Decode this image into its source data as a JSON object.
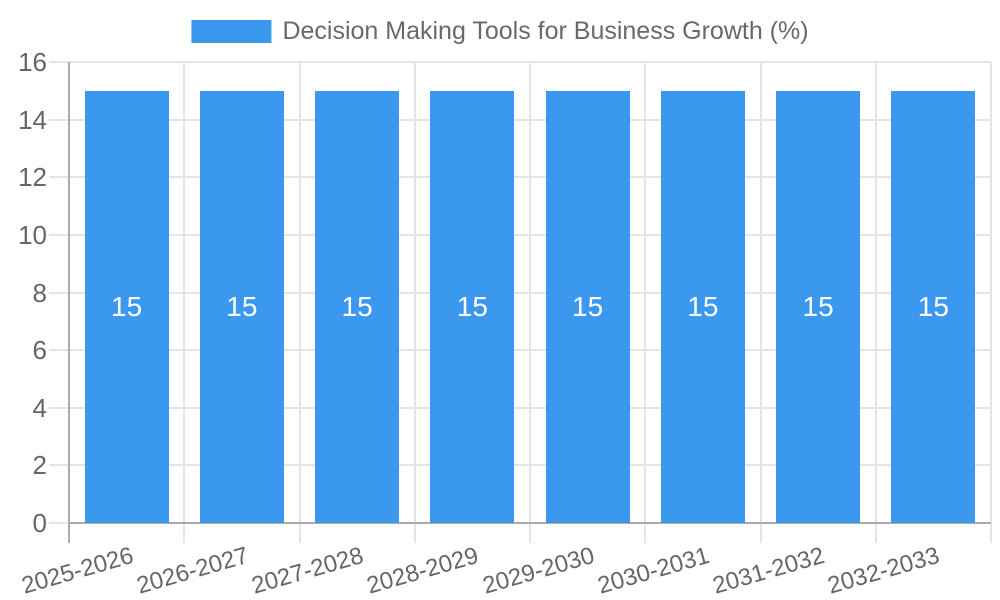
{
  "legend": {
    "label": "Decision Making Tools for Business Growth (%)"
  },
  "chart_data": {
    "type": "bar",
    "title": "Decision Making Tools for Business Growth (%)",
    "categories": [
      "2025-2026",
      "2026-2027",
      "2027-2028",
      "2028-2029",
      "2029-2030",
      "2030-2031",
      "2031-2032",
      "2032-2033"
    ],
    "series": [
      {
        "name": "Decision Making Tools for Business Growth (%)",
        "values": [
          15,
          15,
          15,
          15,
          15,
          15,
          15,
          15
        ]
      }
    ],
    "bar_value_labels": [
      "15",
      "15",
      "15",
      "15",
      "15",
      "15",
      "15",
      "15"
    ],
    "xlabel": "",
    "ylabel": "",
    "ylim": [
      0,
      16
    ],
    "yticks": [
      0,
      2,
      4,
      6,
      8,
      10,
      12,
      14,
      16
    ],
    "grid": true,
    "legend_position": "top-center",
    "x_label_rotation_deg": -16,
    "colors": {
      "bar": "#3b98ef",
      "bar_label": "#ffffff",
      "grid_line": "#e5e5e5",
      "axis_line": "#ababab",
      "tick_label": "#666666",
      "legend_text": "#696969",
      "background": "#ffffff"
    }
  }
}
